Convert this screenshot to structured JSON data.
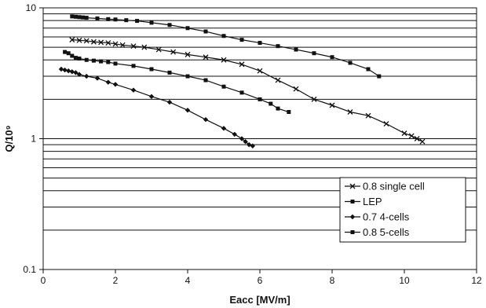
{
  "chart_data": {
    "type": "line",
    "xlabel": "Eacc [MV/m]",
    "ylabel": "Q/10⁹",
    "xlim": [
      0,
      12
    ],
    "ylim": [
      0.1,
      10
    ],
    "y_scale": "log",
    "x_ticks": [
      "0",
      "2",
      "4",
      "6",
      "8",
      "10",
      "12"
    ],
    "y_ticks": [
      "0.1",
      "1",
      "10"
    ],
    "grid": "horizontal",
    "legend_placement": "bottom-right",
    "series": [
      {
        "name": "0.8 single cell",
        "marker": "x",
        "color": "#111111",
        "points": [
          [
            0.8,
            5.7
          ],
          [
            1.0,
            5.65
          ],
          [
            1.2,
            5.6
          ],
          [
            1.4,
            5.5
          ],
          [
            1.6,
            5.45
          ],
          [
            1.8,
            5.4
          ],
          [
            2.0,
            5.3
          ],
          [
            2.2,
            5.2
          ],
          [
            2.5,
            5.1
          ],
          [
            2.8,
            5.0
          ],
          [
            3.2,
            4.8
          ],
          [
            3.6,
            4.6
          ],
          [
            4.0,
            4.4
          ],
          [
            4.5,
            4.2
          ],
          [
            5.0,
            4.0
          ],
          [
            5.5,
            3.7
          ],
          [
            6.0,
            3.3
          ],
          [
            6.5,
            2.8
          ],
          [
            7.0,
            2.4
          ],
          [
            7.5,
            2.0
          ],
          [
            8.0,
            1.8
          ],
          [
            8.5,
            1.6
          ],
          [
            9.0,
            1.5
          ],
          [
            9.5,
            1.3
          ],
          [
            10.0,
            1.1
          ],
          [
            10.2,
            1.05
          ],
          [
            10.35,
            1.0
          ],
          [
            10.5,
            0.95
          ]
        ]
      },
      {
        "name": "LEP",
        "marker": "square",
        "color": "#111111",
        "points": [
          [
            0.6,
            4.6
          ],
          [
            0.7,
            4.5
          ],
          [
            0.8,
            4.3
          ],
          [
            0.9,
            4.15
          ],
          [
            1.0,
            4.1
          ],
          [
            1.2,
            4.0
          ],
          [
            1.4,
            3.95
          ],
          [
            1.6,
            3.9
          ],
          [
            1.8,
            3.85
          ],
          [
            2.0,
            3.75
          ],
          [
            2.5,
            3.6
          ],
          [
            3.0,
            3.4
          ],
          [
            3.5,
            3.2
          ],
          [
            4.0,
            3.0
          ],
          [
            4.5,
            2.8
          ],
          [
            5.0,
            2.5
          ],
          [
            5.5,
            2.25
          ],
          [
            6.0,
            2.0
          ],
          [
            6.3,
            1.85
          ],
          [
            6.5,
            1.7
          ],
          [
            6.8,
            1.6
          ]
        ]
      },
      {
        "name": "0.7 4-cells",
        "marker": "diamond",
        "color": "#111111",
        "points": [
          [
            0.5,
            3.4
          ],
          [
            0.6,
            3.35
          ],
          [
            0.7,
            3.3
          ],
          [
            0.8,
            3.25
          ],
          [
            0.9,
            3.2
          ],
          [
            1.0,
            3.1
          ],
          [
            1.2,
            3.0
          ],
          [
            1.5,
            2.9
          ],
          [
            1.8,
            2.7
          ],
          [
            2.0,
            2.6
          ],
          [
            2.5,
            2.35
          ],
          [
            3.0,
            2.1
          ],
          [
            3.5,
            1.9
          ],
          [
            4.0,
            1.65
          ],
          [
            4.5,
            1.4
          ],
          [
            5.0,
            1.2
          ],
          [
            5.3,
            1.08
          ],
          [
            5.5,
            1.0
          ],
          [
            5.6,
            0.95
          ],
          [
            5.7,
            0.9
          ],
          [
            5.8,
            0.88
          ]
        ]
      },
      {
        "name": "0.8 5-cells",
        "marker": "square",
        "color": "#111111",
        "points": [
          [
            0.8,
            8.6
          ],
          [
            0.9,
            8.55
          ],
          [
            1.0,
            8.5
          ],
          [
            1.1,
            8.45
          ],
          [
            1.2,
            8.4
          ],
          [
            1.5,
            8.3
          ],
          [
            1.8,
            8.2
          ],
          [
            2.0,
            8.15
          ],
          [
            2.3,
            8.05
          ],
          [
            2.6,
            7.95
          ],
          [
            3.0,
            7.7
          ],
          [
            3.5,
            7.4
          ],
          [
            4.0,
            7.0
          ],
          [
            4.5,
            6.6
          ],
          [
            5.0,
            6.1
          ],
          [
            5.5,
            5.7
          ],
          [
            6.0,
            5.4
          ],
          [
            6.5,
            5.1
          ],
          [
            7.0,
            4.8
          ],
          [
            7.5,
            4.5
          ],
          [
            8.0,
            4.2
          ],
          [
            8.5,
            3.8
          ],
          [
            9.0,
            3.4
          ],
          [
            9.3,
            3.0
          ]
        ]
      }
    ]
  }
}
